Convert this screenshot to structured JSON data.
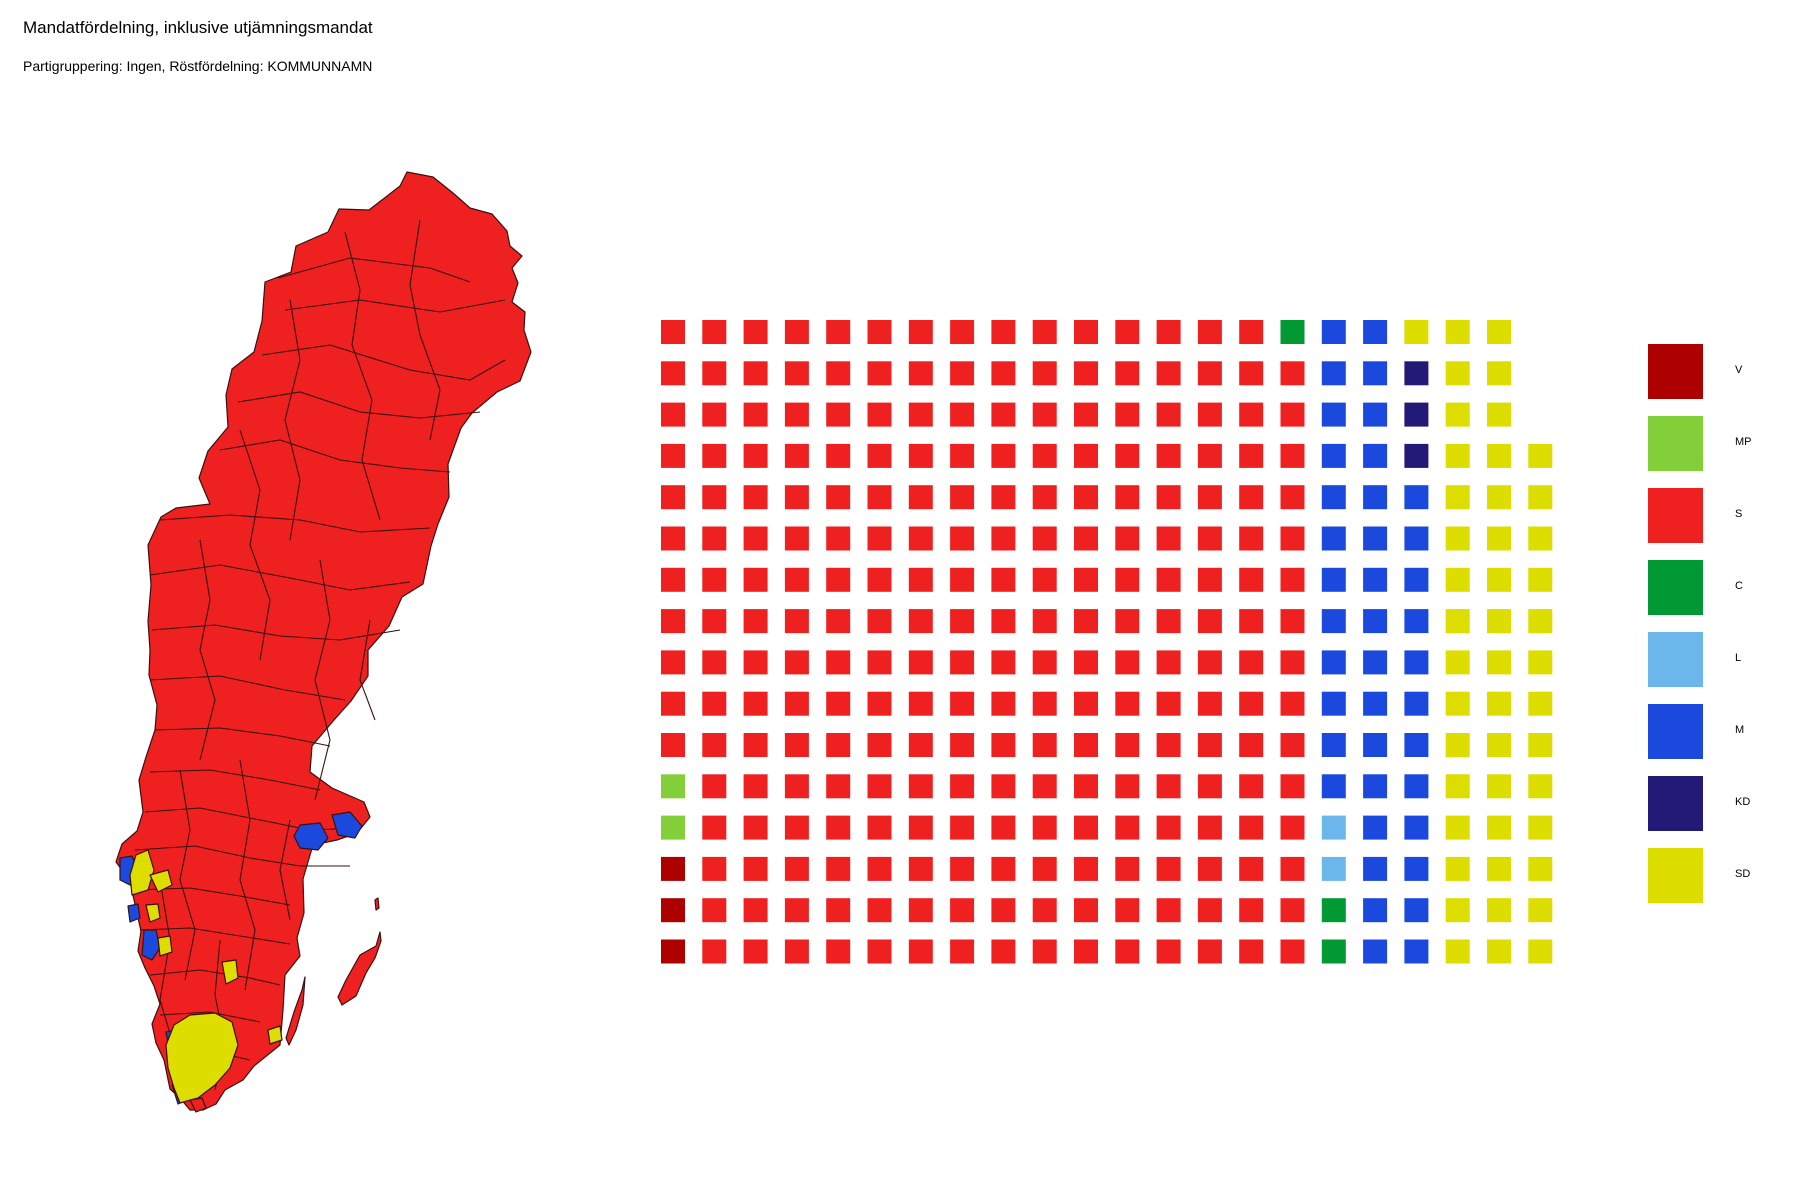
{
  "title": "Mandatfördelning, inklusive utjämningsmandat",
  "subtitle": "Partigruppering: Ingen, Röstfördelning: KOMMUNNAMN",
  "colors": {
    "V": "#ad0000",
    "MP": "#83cf39",
    "S": "#ee2020",
    "C": "#009933",
    "L": "#6bb7ec",
    "M": "#1b49dd",
    "KD": "#231977",
    "SD": "#dddd00",
    "border": "#3a1010"
  },
  "legend": [
    {
      "party": "V",
      "label": "V"
    },
    {
      "party": "MP",
      "label": "MP"
    },
    {
      "party": "S",
      "label": "S"
    },
    {
      "party": "C",
      "label": "C"
    },
    {
      "party": "L",
      "label": "L"
    },
    {
      "party": "M",
      "label": "M"
    },
    {
      "party": "KD",
      "label": "KD"
    },
    {
      "party": "SD",
      "label": "SD"
    }
  ],
  "chart_data": {
    "type": "waffle",
    "total_seats": 349,
    "rows": 16,
    "columns": 22,
    "fill_order": "column-major, bottom-to-top, left-to-right",
    "series": [
      {
        "party": "V",
        "seats": 3
      },
      {
        "party": "MP",
        "seats": 2
      },
      {
        "party": "S",
        "seats": 250
      },
      {
        "party": "C",
        "seats": 3
      },
      {
        "party": "L",
        "seats": 2
      },
      {
        "party": "M",
        "seats": 40
      },
      {
        "party": "KD",
        "seats": 3
      },
      {
        "party": "SD",
        "seats": 46
      }
    ]
  }
}
